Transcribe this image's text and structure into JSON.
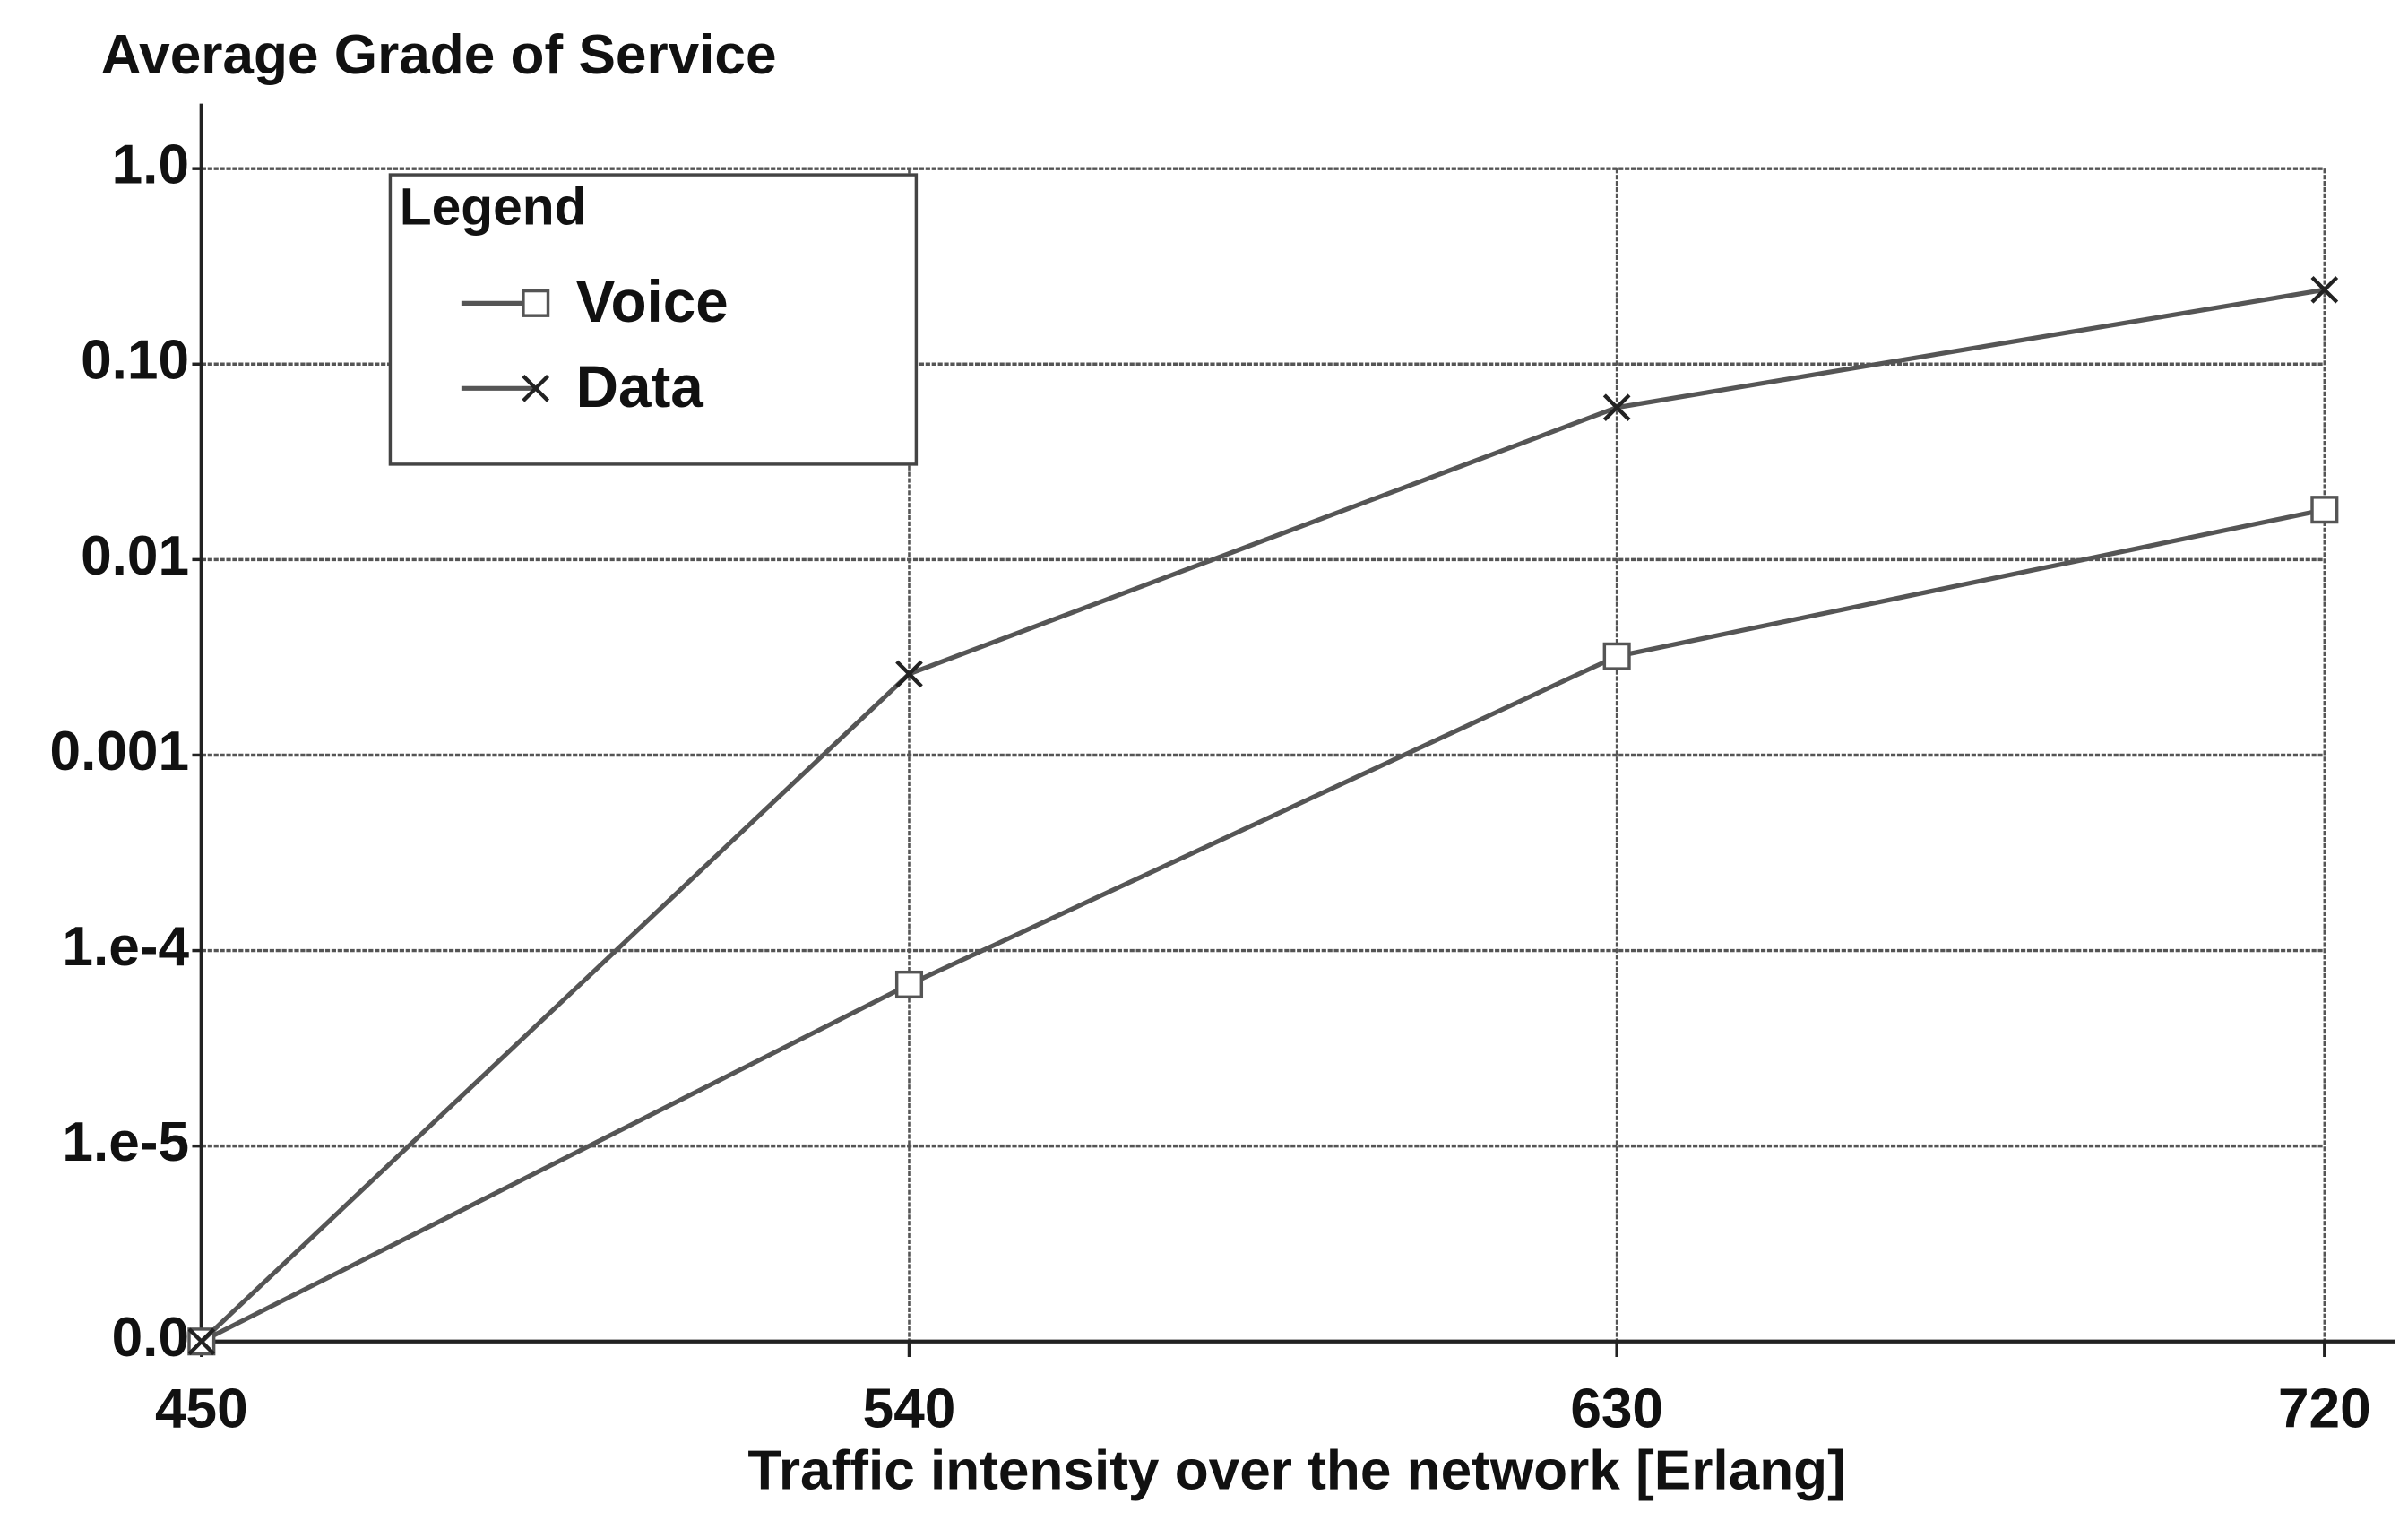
{
  "chart_data": {
    "type": "line",
    "title": "Average Grade of Service",
    "x_label": "Traffic intensity over the network [Erlang]",
    "x": [
      450,
      540,
      630,
      720
    ],
    "series": [
      {
        "name": "Voice",
        "color": "#555555",
        "marker": "square",
        "values": [
          1e-06,
          6.7e-05,
          0.0032,
          0.018
        ]
      },
      {
        "name": "Data",
        "color": "#555555",
        "marker": "x",
        "values": [
          1e-06,
          0.0026,
          0.06,
          0.24
        ]
      }
    ],
    "xlim": [
      450,
      729
    ],
    "xticks": [
      450,
      540,
      630,
      720
    ],
    "ylim": [
      1e-06,
      2.15
    ],
    "yscale": "log",
    "yticks": [
      {
        "value": 1e-06,
        "label": "0.0"
      },
      {
        "value": 1e-05,
        "label": "1.e-5"
      },
      {
        "value": 0.0001,
        "label": "1.e-4"
      },
      0.001,
      0.01,
      {
        "value": 0.1,
        "label": "0.10"
      },
      {
        "value": 1,
        "label": "1.0"
      }
    ],
    "grid": true,
    "legend_title": "Legend",
    "legend_position": "upper left"
  }
}
